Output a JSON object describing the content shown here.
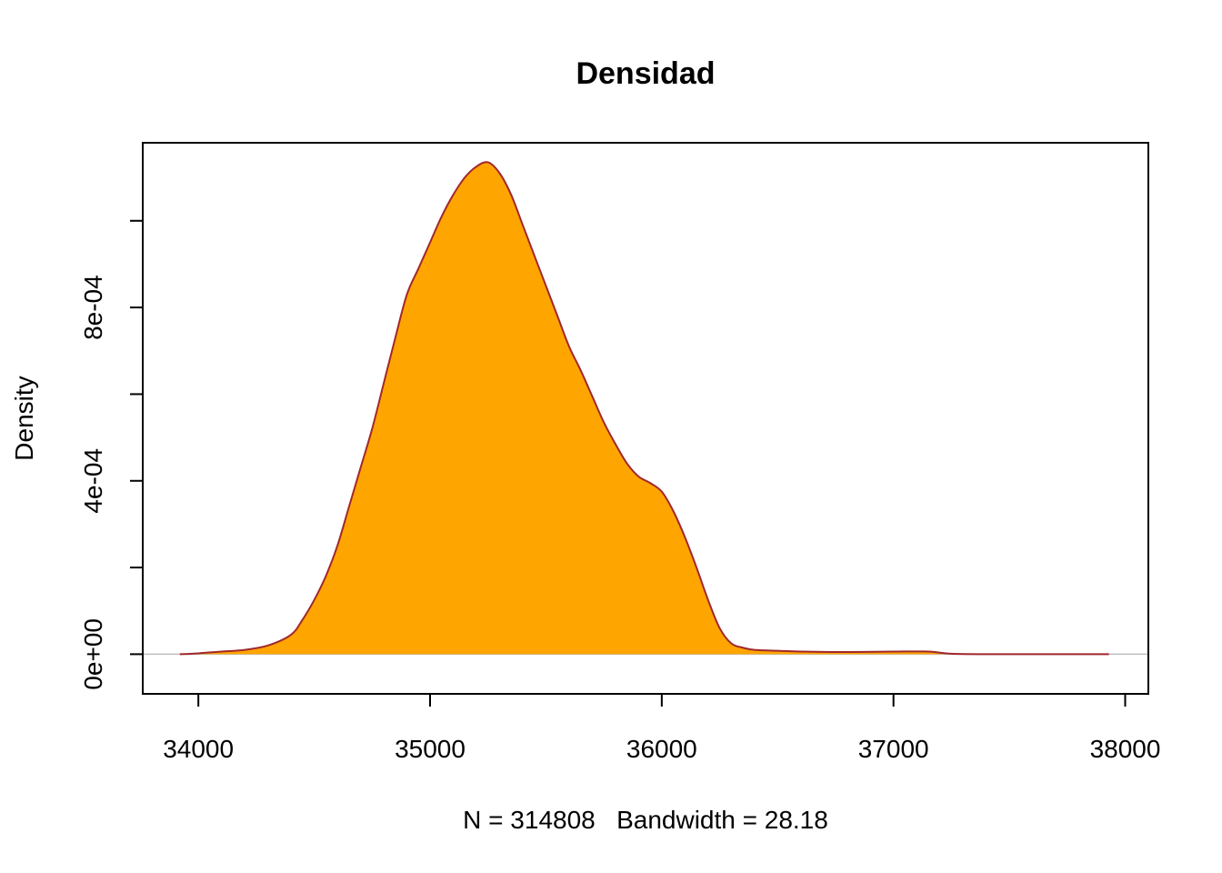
{
  "chart_data": {
    "type": "area",
    "title": "Densidad",
    "xlabel": "N = 314808   Bandwidth = 28.18",
    "ylabel": "Density",
    "xlim": [
      33760,
      38100
    ],
    "ylim": [
      -9.15e-05,
      0.00118
    ],
    "x_ticks": [
      34000,
      35000,
      36000,
      37000,
      38000
    ],
    "x_tick_labels": [
      "34000",
      "35000",
      "36000",
      "37000",
      "38000"
    ],
    "y_ticks": [
      0,
      0.0002,
      0.0004,
      0.0006,
      0.0008,
      0.001
    ],
    "y_tick_labels": [
      {
        "value": 0,
        "label": "0e+00"
      },
      {
        "value": 0.0004,
        "label": "4e-04"
      },
      {
        "value": 0.0008,
        "label": "8e-04"
      }
    ],
    "fill_color": "#FFA500",
    "line_color": "#A0282D",
    "baseline_color": "#BEBEBE",
    "grid": false,
    "x": [
      33920,
      34000,
      34100,
      34200,
      34300,
      34400,
      34450,
      34500,
      34550,
      34600,
      34650,
      34700,
      34750,
      34800,
      34850,
      34900,
      34950,
      35000,
      35050,
      35100,
      35150,
      35200,
      35250,
      35300,
      35350,
      35400,
      35450,
      35500,
      35550,
      35600,
      35650,
      35700,
      35750,
      35800,
      35850,
      35900,
      35950,
      36000,
      36050,
      36100,
      36150,
      36200,
      36250,
      36300,
      36350,
      36400,
      36500,
      36600,
      36800,
      37000,
      37150,
      37250,
      37400,
      37600,
      37800,
      37930
    ],
    "y": [
      0,
      2e-06,
      6e-06,
      1e-05,
      2e-05,
      4.5e-05,
      8e-05,
      0.000125,
      0.00018,
      0.00025,
      0.00034,
      0.00043,
      0.00052,
      0.000625,
      0.00073,
      0.00083,
      0.00089,
      0.00095,
      0.00101,
      0.00106,
      0.0011,
      0.001125,
      0.001135,
      0.00111,
      0.00106,
      0.00099,
      0.00092,
      0.00085,
      0.00078,
      0.00071,
      0.000655,
      0.000595,
      0.000535,
      0.000485,
      0.00044,
      0.00041,
      0.000395,
      0.000375,
      0.00033,
      0.00027,
      0.0002,
      0.000125,
      6e-05,
      2.5e-05,
      1.5e-05,
      1e-05,
      8e-06,
      6e-06,
      5e-06,
      6e-06,
      6e-06,
      1e-06,
      0,
      0,
      0,
      0
    ]
  }
}
